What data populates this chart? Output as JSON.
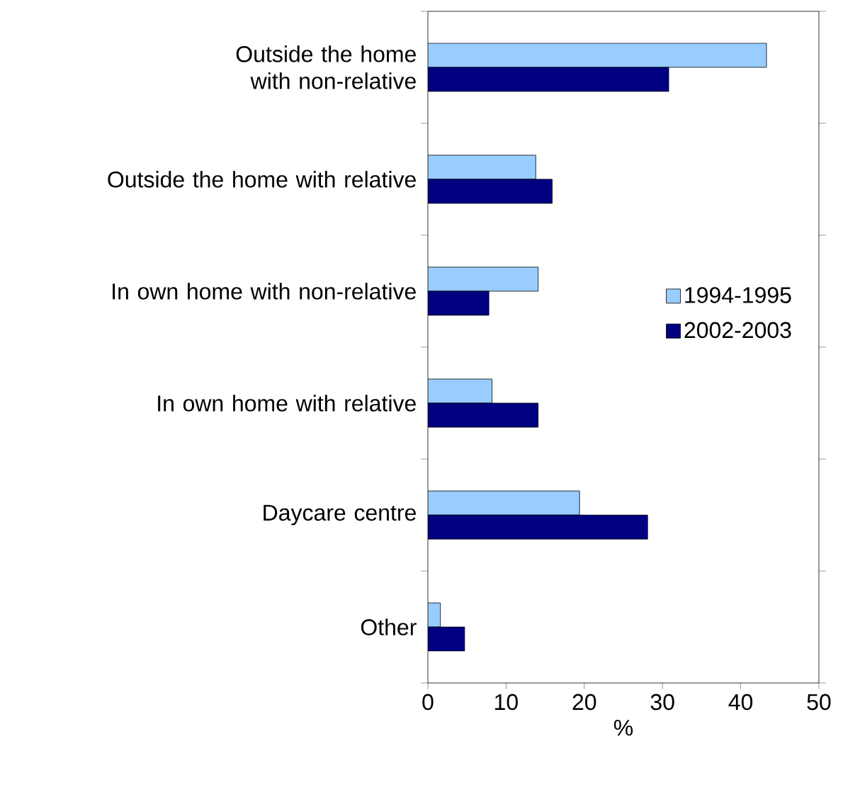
{
  "chart_data": {
    "type": "bar",
    "orientation": "horizontal",
    "xlabel": "%",
    "categories": [
      "Outside the home with non-relative",
      "Outside the home with relative",
      "In own home with non-relative",
      "In own home with relative",
      "Daycare centre",
      "Other"
    ],
    "series": [
      {
        "name": "1994-1995",
        "color": "#99ccff",
        "values": [
          43.3,
          13.8,
          14.1,
          8.2,
          19.4,
          1.6
        ]
      },
      {
        "name": "2002-2003",
        "color": "#000080",
        "values": [
          30.8,
          15.9,
          7.8,
          14.1,
          28.1,
          4.7
        ]
      }
    ],
    "xlim": [
      0,
      50
    ],
    "xticks": [
      0,
      10,
      20,
      30,
      40,
      50
    ],
    "legend": "right",
    "grid": false
  }
}
